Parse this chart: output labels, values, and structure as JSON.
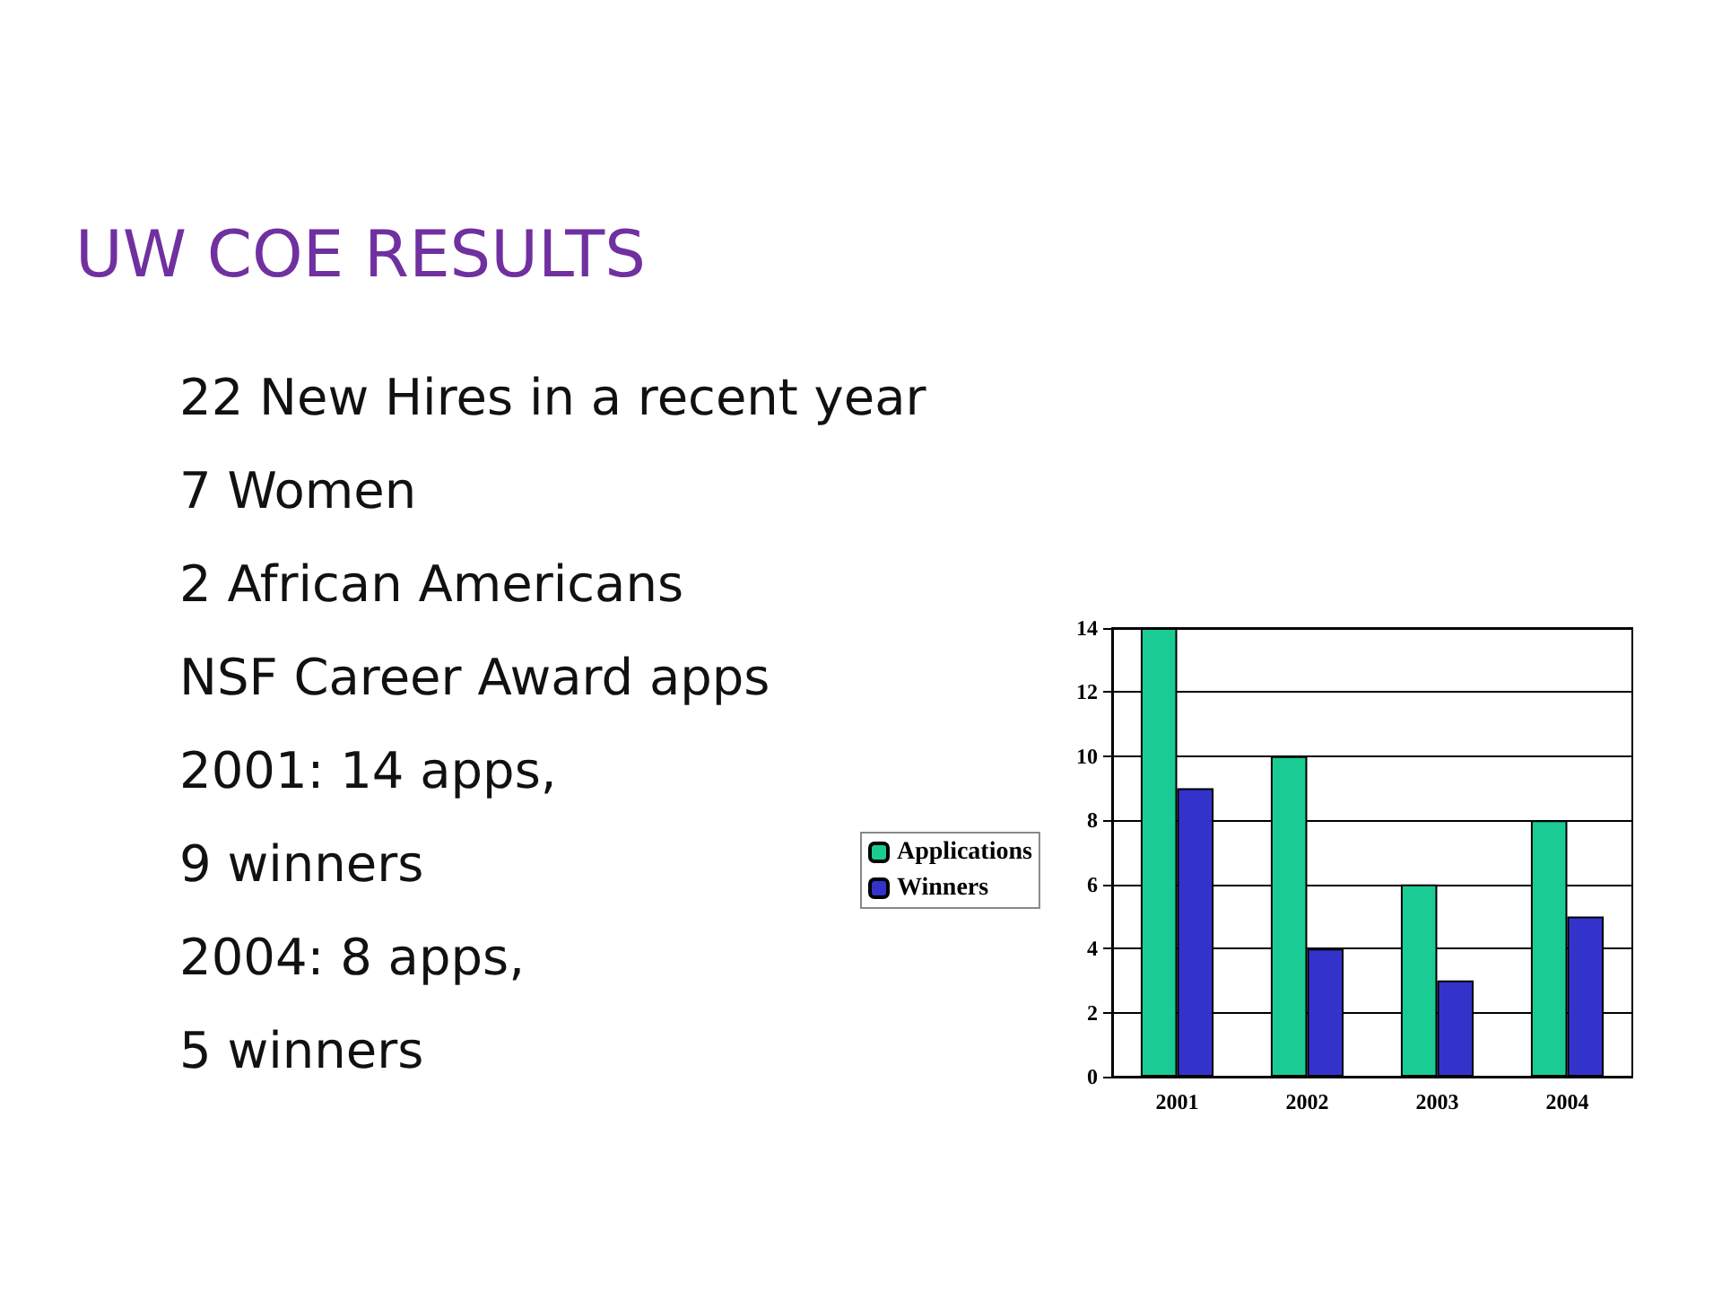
{
  "chart_data": {
    "type": "bar",
    "title": "UW COE RESULTS",
    "annotations": [
      "22 New Hires in a recent year",
      "7 Women",
      "2 African Americans",
      "NSF Career Award apps",
      "2001: 14 apps,",
      "9 winners",
      "2004: 8 apps,",
      "5 winners"
    ],
    "categories": [
      "2001",
      "2002",
      "2003",
      "2004"
    ],
    "series": [
      {
        "name": "Applications",
        "color": "#1acc94",
        "values": [
          14,
          10,
          6,
          8
        ]
      },
      {
        "name": "Winners",
        "color": "#3333cc",
        "values": [
          9,
          4,
          3,
          5
        ]
      }
    ],
    "ylim": [
      0,
      14
    ],
    "yticks": [
      0,
      2,
      4,
      6,
      8,
      10,
      12,
      14
    ],
    "grid": "y",
    "legend": "left"
  }
}
